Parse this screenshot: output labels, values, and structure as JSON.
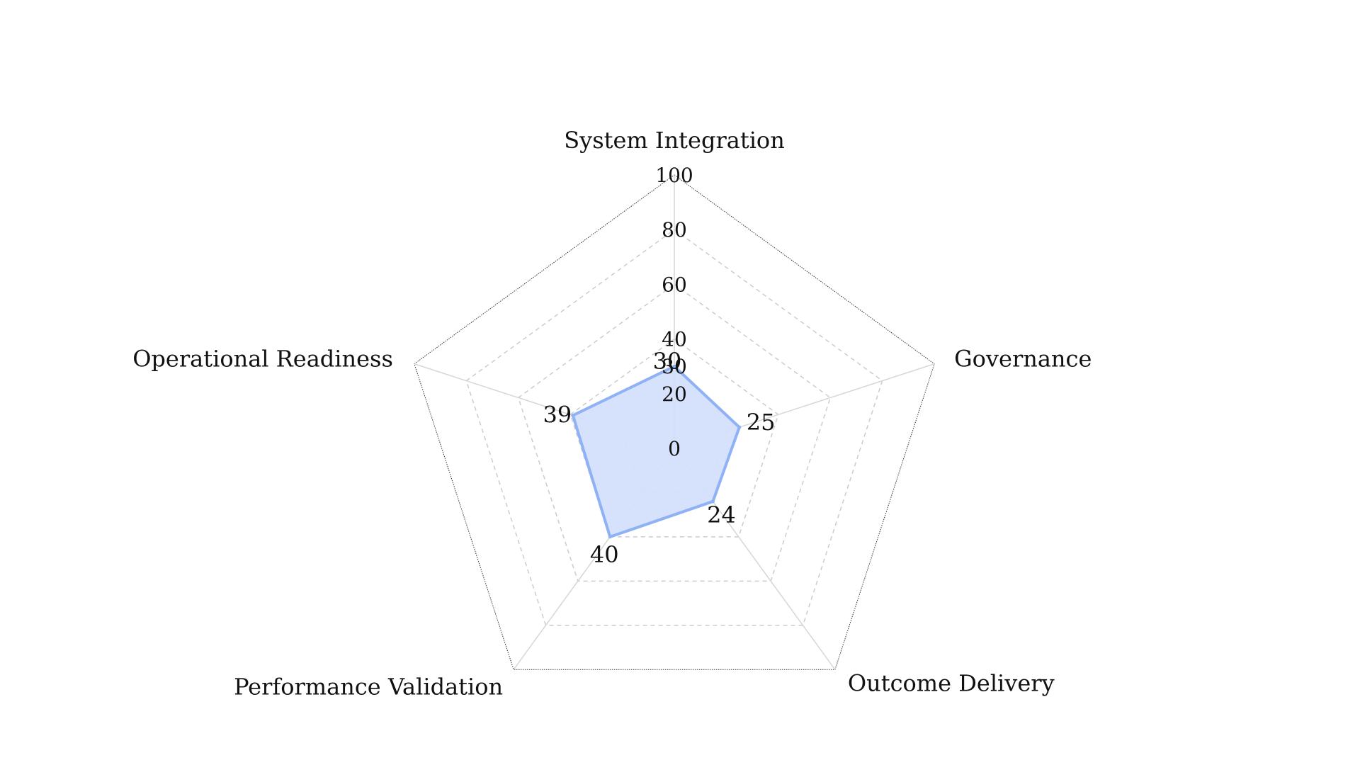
{
  "chart_data": {
    "type": "radar",
    "axes": [
      "System Integration",
      "Governance",
      "Outcome Delivery",
      "Performance Validation",
      "Operational Readiness"
    ],
    "series": [
      {
        "values": [
          30,
          25,
          24,
          40,
          39
        ],
        "color": "#8FB1F5",
        "fill": "#D4DFFB"
      }
    ],
    "rlim": [
      0,
      100
    ],
    "ticks": [
      0,
      20,
      30,
      40,
      60,
      80,
      100
    ],
    "grid_levels": [
      20,
      40,
      60,
      80,
      100
    ],
    "grid": true,
    "grid_style": "dashed",
    "legend": "none"
  }
}
